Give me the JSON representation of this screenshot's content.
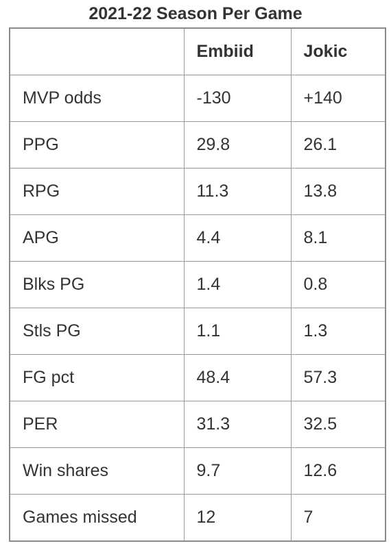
{
  "table": {
    "caption": "2021-22 Season Per Game",
    "headers": [
      "",
      "Embiid",
      "Jokic"
    ],
    "rows": [
      [
        "MVP odds",
        "-130",
        "+140"
      ],
      [
        "PPG",
        "29.8",
        "26.1"
      ],
      [
        "RPG",
        "11.3",
        "13.8"
      ],
      [
        "APG",
        "4.4",
        "8.1"
      ],
      [
        "Blks PG",
        "1.4",
        "0.8"
      ],
      [
        "Stls PG",
        "1.1",
        "1.3"
      ],
      [
        "FG pct",
        "48.4",
        "57.3"
      ],
      [
        "PER",
        "31.3",
        "32.5"
      ],
      [
        "Win shares",
        "9.7",
        "12.6"
      ],
      [
        "Games missed",
        "12",
        "7"
      ]
    ]
  }
}
